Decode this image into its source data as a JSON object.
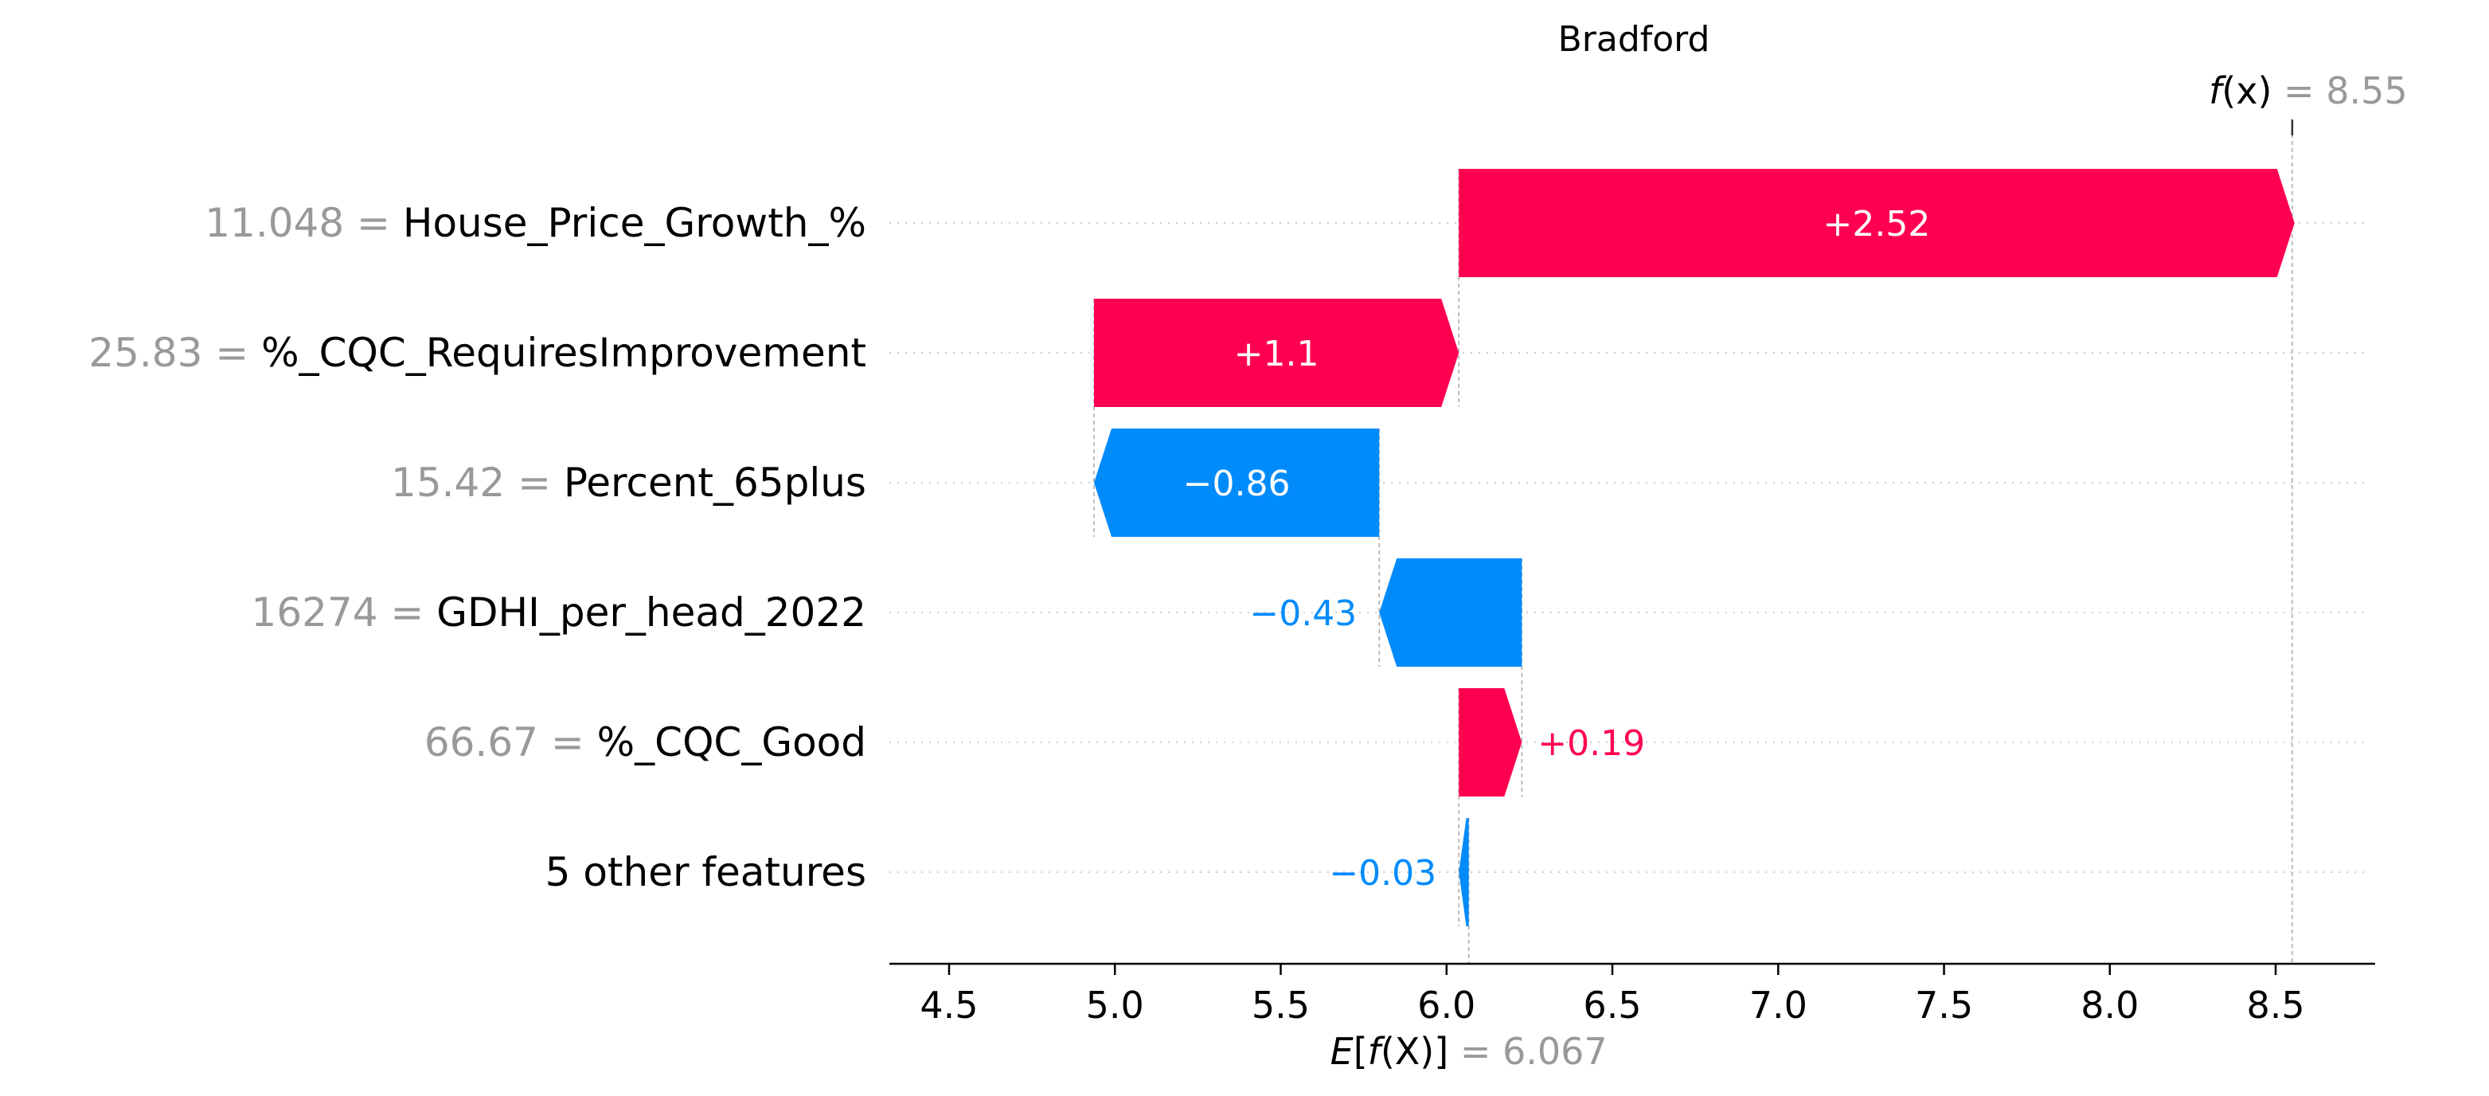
{
  "chart_data": {
    "type": "waterfall",
    "title": "Bradford",
    "base_value": 6.067,
    "output_value": 8.55,
    "base_label": {
      "prefix": "E",
      "bracket_open": "[",
      "func": "f",
      "arg": "(X)",
      "bracket_close": "]",
      "equals": " = ",
      "value": "6.067"
    },
    "output_label": {
      "func": "f",
      "arg": "(x)",
      "equals": " = ",
      "value": "8.55"
    },
    "features": [
      {
        "value_text": "11.048",
        "name": "House_Price_Growth_%",
        "shap": 2.52,
        "label": "+2.52"
      },
      {
        "value_text": "25.83",
        "name": "%_CQC_RequiresImprovement",
        "shap": 1.1,
        "label": "+1.1"
      },
      {
        "value_text": "15.42",
        "name": "Percent_65plus",
        "shap": -0.86,
        "label": "−0.86"
      },
      {
        "value_text": "16274",
        "name": "GDHI_per_head_2022",
        "shap": -0.43,
        "label": "−0.43"
      },
      {
        "value_text": "66.67",
        "name": "%_CQC_Good",
        "shap": 0.19,
        "label": "+0.19"
      },
      {
        "value_text": "",
        "name": "5 other features",
        "shap": -0.03,
        "label": "−0.03"
      }
    ],
    "xlim": [
      4.32,
      8.8
    ],
    "xticks": [
      "4.5",
      "5.0",
      "5.5",
      "6.0",
      "6.5",
      "7.0",
      "7.5",
      "8.0",
      "8.5"
    ],
    "colors": {
      "positive": "#ff0051",
      "negative": "#008bfb"
    }
  }
}
